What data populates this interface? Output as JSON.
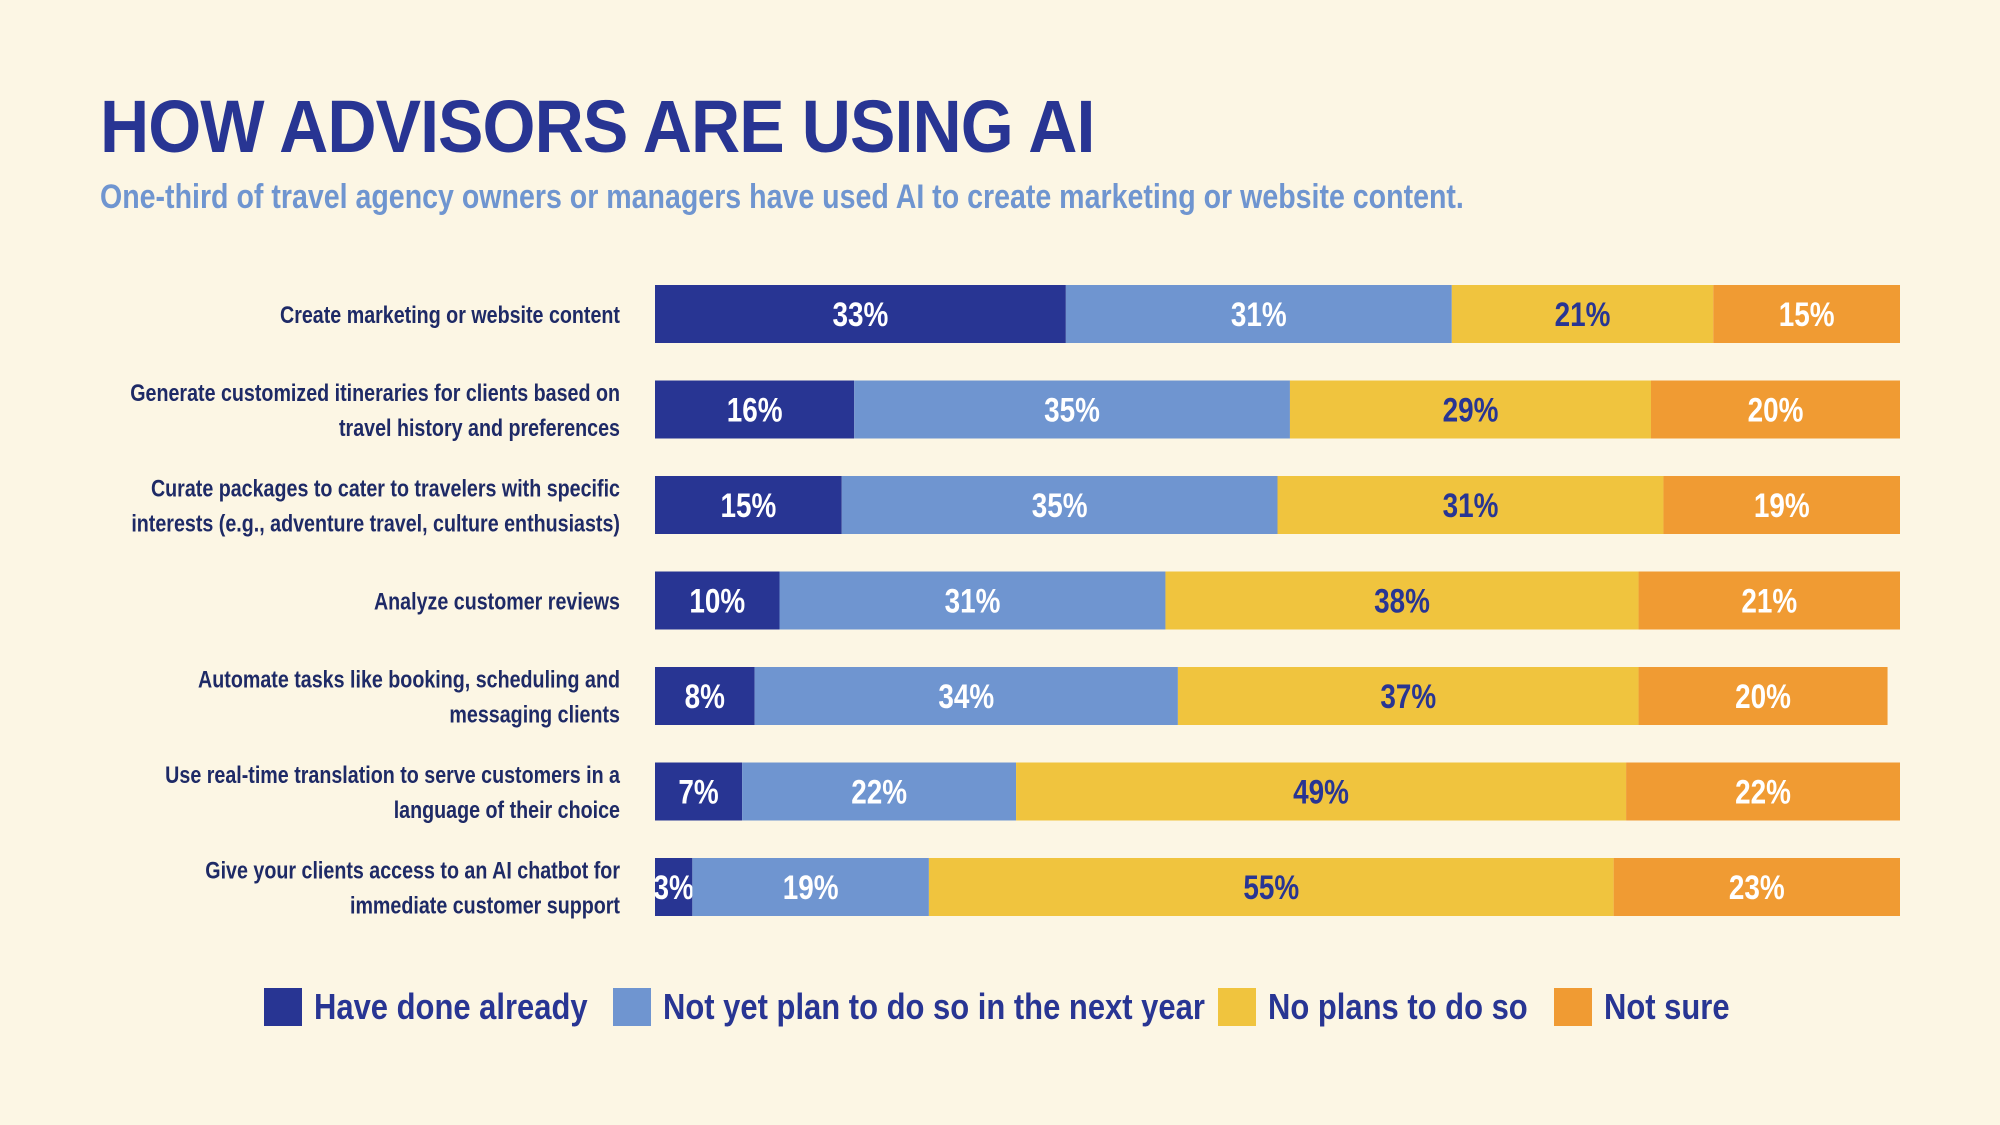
{
  "header": {
    "title": "HOW ADVISORS ARE USING AI",
    "subtitle": "One-third of travel agency owners or managers have used AI to create marketing or website content."
  },
  "colors": {
    "background": "#fcf6e4",
    "title": "#283593",
    "subtitle": "#6f95d0",
    "label": "#1e2a66"
  },
  "chart_data": {
    "type": "bar",
    "orientation": "horizontal",
    "stacked": true,
    "unit": "%",
    "xlim": [
      0,
      100
    ],
    "grid": false,
    "legend_position": "bottom",
    "categories": [
      [
        "Create marketing or website content"
      ],
      [
        "Generate customized itineraries for clients based on",
        "travel history and preferences"
      ],
      [
        "Curate packages to cater to travelers with specific",
        "interests (e.g., adventure travel, culture enthusiasts)"
      ],
      [
        "Analyze customer reviews"
      ],
      [
        "Automate tasks like booking, scheduling and",
        "messaging clients"
      ],
      [
        "Use real-time translation to serve customers in a",
        "language of their choice"
      ],
      [
        "Give your clients access to an AI chatbot for",
        "immediate customer support"
      ]
    ],
    "series": [
      {
        "name": "Have done already",
        "color": "#283593",
        "label_color": "#ffffff",
        "values": [
          33,
          16,
          15,
          10,
          8,
          7,
          3
        ]
      },
      {
        "name": "Not yet plan to do so in the next year",
        "color": "#6f95d0",
        "label_color": "#ffffff",
        "values": [
          31,
          35,
          35,
          31,
          34,
          22,
          19
        ]
      },
      {
        "name": "No plans to do so",
        "color": "#f0c43e",
        "label_color": "#283593",
        "values": [
          21,
          29,
          31,
          38,
          37,
          49,
          55
        ]
      },
      {
        "name": "Not sure",
        "color": "#f09b33",
        "label_color": "#ffffff",
        "values": [
          15,
          20,
          19,
          21,
          20,
          22,
          23
        ]
      }
    ]
  }
}
